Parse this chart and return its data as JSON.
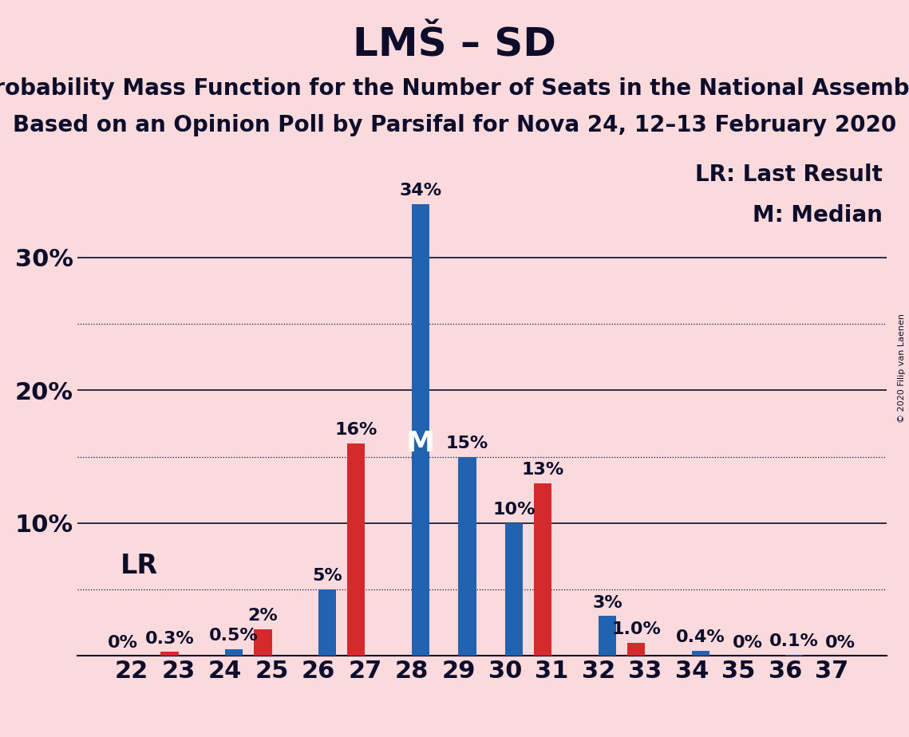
{
  "title": "LMŠ – SD",
  "subtitle1": "Probability Mass Function for the Number of Seats in the National Assembly",
  "subtitle2": "Based on an Opinion Poll by Parsifal for Nova 24, 12–13 February 2020",
  "copyright": "© 2020 Filip van Laenen",
  "legend_lr": "LR: Last Result",
  "legend_m": "M: Median",
  "seats": [
    22,
    23,
    24,
    25,
    26,
    27,
    28,
    29,
    30,
    31,
    32,
    33,
    34,
    35,
    36,
    37
  ],
  "blue_values": [
    0.0,
    0.0,
    0.5,
    0.0,
    5.0,
    0.0,
    34.0,
    15.0,
    10.0,
    0.0,
    3.0,
    0.0,
    0.4,
    0.0,
    0.1,
    0.0
  ],
  "red_values": [
    0.0,
    0.3,
    0.0,
    2.0,
    0.0,
    16.0,
    0.0,
    0.0,
    0.0,
    13.0,
    0.0,
    1.0,
    0.0,
    0.0,
    0.0,
    0.0
  ],
  "blue_labels": [
    "",
    "",
    "0.5%",
    "",
    "5%",
    "",
    "34%",
    "15%",
    "10%",
    "",
    "3%",
    "",
    "0.4%",
    "0%",
    "0.1%",
    "0%"
  ],
  "red_labels": [
    "0%",
    "0.3%",
    "",
    "2%",
    "",
    "16%",
    "",
    "",
    "",
    "13%",
    "",
    "1.0%",
    "",
    "",
    "",
    ""
  ],
  "blue_color": "#2163b0",
  "red_color": "#d32b2b",
  "background_color": "#fadadd",
  "text_color": "#0d0d2b",
  "median_seat": 28,
  "lr_seat": 23,
  "yticks": [
    10,
    20,
    30
  ],
  "ylim": [
    0,
    38
  ],
  "dotted_lines": [
    5,
    15,
    25
  ],
  "solid_lines": [
    10,
    20,
    30
  ],
  "title_fontsize": 36,
  "subtitle_fontsize": 20,
  "axis_fontsize": 22,
  "bar_label_fontsize": 16,
  "legend_fontsize": 20,
  "bar_width": 0.38
}
